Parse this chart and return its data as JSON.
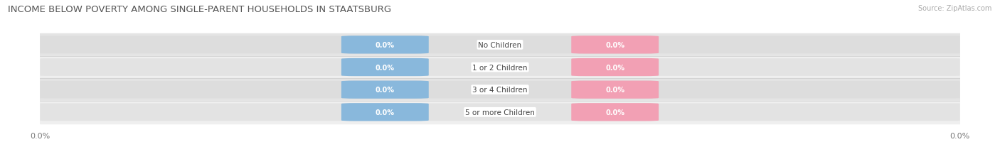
{
  "title": "INCOME BELOW POVERTY AMONG SINGLE-PARENT HOUSEHOLDS IN STAATSBURG",
  "source": "Source: ZipAtlas.com",
  "categories": [
    "No Children",
    "1 or 2 Children",
    "3 or 4 Children",
    "5 or more Children"
  ],
  "father_values": [
    0.0,
    0.0,
    0.0,
    0.0
  ],
  "mother_values": [
    0.0,
    0.0,
    0.0,
    0.0
  ],
  "father_color": "#89b8dc",
  "mother_color": "#f2a0b4",
  "bar_bg_light": "#efefef",
  "bar_bg_dark": "#e4e4e4",
  "row_bg_light": "#f7f7f7",
  "row_bg_dark": "#ececec",
  "title_fontsize": 9.5,
  "source_fontsize": 7,
  "figure_bg": "#ffffff"
}
